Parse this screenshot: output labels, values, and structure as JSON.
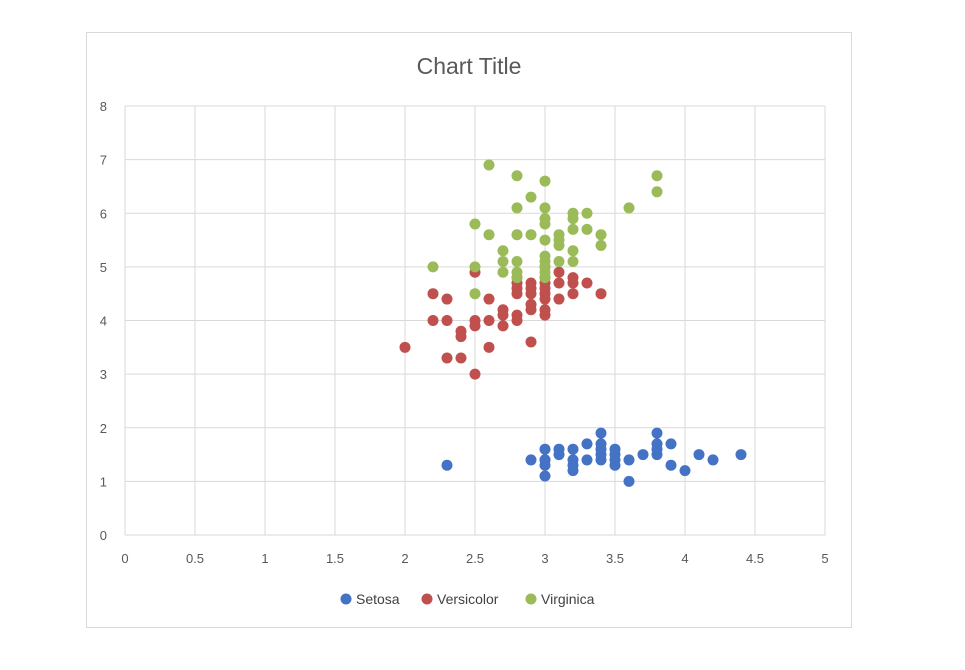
{
  "chart_data": {
    "type": "scatter",
    "title": "Chart Title",
    "xlabel": "",
    "ylabel": "",
    "xlim": [
      0,
      5
    ],
    "ylim": [
      0,
      8
    ],
    "xticks": [
      "0",
      "0.5",
      "1",
      "1.5",
      "2",
      "2.5",
      "3",
      "3.5",
      "4",
      "4.5",
      "5"
    ],
    "yticks": [
      "0",
      "1",
      "2",
      "3",
      "4",
      "5",
      "6",
      "7",
      "8"
    ],
    "grid": true,
    "legend_position": "bottom",
    "series": [
      {
        "name": "Setosa",
        "color": "#4472c4",
        "points": [
          [
            2.3,
            1.3
          ],
          [
            2.9,
            1.4
          ],
          [
            3.0,
            1.1
          ],
          [
            3.0,
            1.3
          ],
          [
            3.0,
            1.4
          ],
          [
            3.0,
            1.6
          ],
          [
            3.0,
            1.4
          ],
          [
            3.1,
            1.5
          ],
          [
            3.1,
            1.6
          ],
          [
            3.2,
            1.2
          ],
          [
            3.2,
            1.3
          ],
          [
            3.2,
            1.4
          ],
          [
            3.2,
            1.6
          ],
          [
            3.3,
            1.4
          ],
          [
            3.3,
            1.7
          ],
          [
            3.4,
            1.4
          ],
          [
            3.4,
            1.5
          ],
          [
            3.4,
            1.6
          ],
          [
            3.4,
            1.7
          ],
          [
            3.4,
            1.9
          ],
          [
            3.5,
            1.3
          ],
          [
            3.5,
            1.4
          ],
          [
            3.5,
            1.5
          ],
          [
            3.5,
            1.6
          ],
          [
            3.6,
            1.0
          ],
          [
            3.6,
            1.4
          ],
          [
            3.7,
            1.5
          ],
          [
            3.8,
            1.5
          ],
          [
            3.8,
            1.6
          ],
          [
            3.8,
            1.7
          ],
          [
            3.8,
            1.9
          ],
          [
            3.9,
            1.3
          ],
          [
            3.9,
            1.7
          ],
          [
            4.0,
            1.2
          ],
          [
            4.1,
            1.5
          ],
          [
            4.2,
            1.4
          ],
          [
            4.4,
            1.5
          ]
        ]
      },
      {
        "name": "Versicolor",
        "color": "#c0504d",
        "points": [
          [
            2.0,
            3.5
          ],
          [
            2.2,
            4.0
          ],
          [
            2.2,
            4.5
          ],
          [
            2.3,
            3.3
          ],
          [
            2.3,
            4.0
          ],
          [
            2.3,
            4.4
          ],
          [
            2.4,
            3.3
          ],
          [
            2.4,
            3.7
          ],
          [
            2.4,
            3.8
          ],
          [
            2.5,
            3.0
          ],
          [
            2.5,
            3.9
          ],
          [
            2.5,
            4.0
          ],
          [
            2.5,
            4.9
          ],
          [
            2.6,
            3.5
          ],
          [
            2.6,
            4.0
          ],
          [
            2.6,
            4.4
          ],
          [
            2.7,
            3.9
          ],
          [
            2.7,
            4.1
          ],
          [
            2.7,
            4.2
          ],
          [
            2.8,
            4.0
          ],
          [
            2.8,
            4.1
          ],
          [
            2.8,
            4.5
          ],
          [
            2.8,
            4.6
          ],
          [
            2.8,
            4.7
          ],
          [
            2.8,
            4.8
          ],
          [
            2.9,
            3.6
          ],
          [
            2.9,
            4.2
          ],
          [
            2.9,
            4.3
          ],
          [
            2.9,
            4.5
          ],
          [
            2.9,
            4.6
          ],
          [
            2.9,
            4.7
          ],
          [
            3.0,
            4.1
          ],
          [
            3.0,
            4.2
          ],
          [
            3.0,
            4.4
          ],
          [
            3.0,
            4.5
          ],
          [
            3.0,
            4.6
          ],
          [
            3.0,
            4.7
          ],
          [
            3.0,
            4.8
          ],
          [
            3.0,
            5.0
          ],
          [
            3.1,
            4.4
          ],
          [
            3.1,
            4.7
          ],
          [
            3.1,
            4.9
          ],
          [
            3.2,
            4.5
          ],
          [
            3.2,
            4.7
          ],
          [
            3.2,
            4.8
          ],
          [
            3.3,
            4.7
          ],
          [
            3.4,
            4.5
          ]
        ]
      },
      {
        "name": "Virginica",
        "color": "#9bbb59",
        "points": [
          [
            2.2,
            5.0
          ],
          [
            2.5,
            4.5
          ],
          [
            2.5,
            5.0
          ],
          [
            2.5,
            5.8
          ],
          [
            2.6,
            5.6
          ],
          [
            2.6,
            6.9
          ],
          [
            2.7,
            4.9
          ],
          [
            2.7,
            5.1
          ],
          [
            2.7,
            5.3
          ],
          [
            2.8,
            4.8
          ],
          [
            2.8,
            4.9
          ],
          [
            2.8,
            5.1
          ],
          [
            2.8,
            5.6
          ],
          [
            2.8,
            6.1
          ],
          [
            2.8,
            6.7
          ],
          [
            2.9,
            5.6
          ],
          [
            2.9,
            6.3
          ],
          [
            3.0,
            4.8
          ],
          [
            3.0,
            4.9
          ],
          [
            3.0,
            5.0
          ],
          [
            3.0,
            5.1
          ],
          [
            3.0,
            5.2
          ],
          [
            3.0,
            5.5
          ],
          [
            3.0,
            5.8
          ],
          [
            3.0,
            5.9
          ],
          [
            3.0,
            6.1
          ],
          [
            3.0,
            6.6
          ],
          [
            3.1,
            5.1
          ],
          [
            3.1,
            5.4
          ],
          [
            3.1,
            5.5
          ],
          [
            3.1,
            5.6
          ],
          [
            3.2,
            5.1
          ],
          [
            3.2,
            5.3
          ],
          [
            3.2,
            5.7
          ],
          [
            3.2,
            5.9
          ],
          [
            3.2,
            6.0
          ],
          [
            3.3,
            5.7
          ],
          [
            3.3,
            6.0
          ],
          [
            3.4,
            5.4
          ],
          [
            3.4,
            5.6
          ],
          [
            3.6,
            6.1
          ],
          [
            3.8,
            6.4
          ],
          [
            3.8,
            6.7
          ]
        ]
      }
    ]
  }
}
